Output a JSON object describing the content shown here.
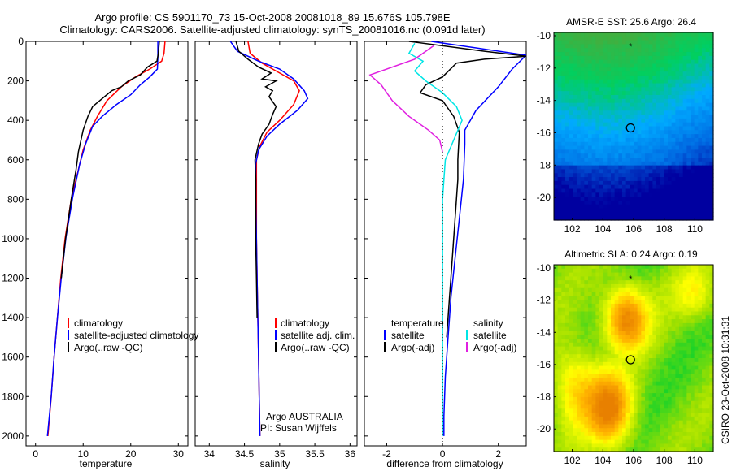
{
  "header": {
    "title_line1": "Argo profile: CS 5901170_73 15-Oct-2008 20081018_89 15.676S 105.798E",
    "title_line2": "Climatology: CARS2006. Satellite-adjusted climatology: synTS_20081016.nc (0.091d later)"
  },
  "credit": "CSIRO 23-Oct-2008 10:31:31",
  "chart_data": [
    {
      "type": "line",
      "xlabel": "temperature",
      "ylabel": "",
      "xlim": [
        -2,
        32
      ],
      "ylim": [
        0,
        2050
      ],
      "y_reversed": true,
      "xticks": [
        0,
        10,
        20,
        30
      ],
      "yticks": [
        0,
        200,
        400,
        600,
        800,
        1000,
        1200,
        1400,
        1600,
        1800,
        2000
      ],
      "legend": [
        "climatology",
        "satellite-adjusted climatology",
        "Argo(..raw -QC)"
      ],
      "series": [
        {
          "name": "climatology",
          "color": "#ff0000",
          "points": [
            [
              27.2,
              0
            ],
            [
              27,
              60
            ],
            [
              26.5,
              100
            ],
            [
              24,
              140
            ],
            [
              21,
              180
            ],
            [
              18,
              230
            ],
            [
              15,
              300
            ],
            [
              13,
              380
            ],
            [
              11.5,
              450
            ],
            [
              10,
              550
            ],
            [
              9,
              650
            ],
            [
              7.5,
              800
            ],
            [
              6.2,
              1000
            ],
            [
              5.3,
              1200
            ],
            [
              4.6,
              1400
            ],
            [
              3.9,
              1600
            ],
            [
              3.3,
              1800
            ],
            [
              2.6,
              2000
            ]
          ]
        },
        {
          "name": "satellite-adjusted climatology",
          "color": "#0000ff",
          "points": [
            [
              25.7,
              0
            ],
            [
              25.7,
              80
            ],
            [
              25.6,
              140
            ],
            [
              24,
              180
            ],
            [
              22,
              220
            ],
            [
              20,
              270
            ],
            [
              17,
              320
            ],
            [
              14,
              380
            ],
            [
              12,
              430
            ],
            [
              10.5,
              520
            ],
            [
              9.3,
              620
            ],
            [
              7.8,
              790
            ],
            [
              6.4,
              990
            ],
            [
              5.4,
              1200
            ],
            [
              4.6,
              1400
            ],
            [
              3.9,
              1600
            ],
            [
              3.3,
              1800
            ],
            [
              2.5,
              2000
            ]
          ]
        },
        {
          "name": "Argo(..raw -QC)",
          "color": "#000000",
          "points": [
            [
              26,
              0
            ],
            [
              25.8,
              60
            ],
            [
              25.5,
              100
            ],
            [
              23.5,
              130
            ],
            [
              22,
              170
            ],
            [
              19.5,
              200
            ],
            [
              18,
              230
            ],
            [
              16,
              250
            ],
            [
              14,
              290
            ],
            [
              12,
              330
            ],
            [
              11,
              380
            ],
            [
              10,
              450
            ],
            [
              9,
              560
            ],
            [
              8.5,
              650
            ],
            [
              7.5,
              800
            ],
            [
              6.3,
              1000
            ],
            [
              5.4,
              1200
            ]
          ]
        }
      ]
    },
    {
      "type": "line",
      "xlabel": "salinity",
      "ylabel": "",
      "xlim": [
        33.8,
        36.1
      ],
      "ylim": [
        0,
        2050
      ],
      "y_reversed": true,
      "xticks": [
        34,
        34.5,
        35,
        35.5,
        36
      ],
      "legend": [
        "climatology",
        "satellite adj. clim.",
        "Argo(..raw -QC)"
      ],
      "annotation": [
        "Argo AUSTRALIA",
        "PI: Susan Wijffels"
      ],
      "series": [
        {
          "name": "climatology",
          "color": "#ff0000",
          "points": [
            [
              34.55,
              0
            ],
            [
              34.58,
              60
            ],
            [
              34.75,
              110
            ],
            [
              35,
              160
            ],
            [
              35.2,
              200
            ],
            [
              35.28,
              250
            ],
            [
              35.2,
              320
            ],
            [
              35,
              400
            ],
            [
              34.82,
              460
            ],
            [
              34.72,
              530
            ],
            [
              34.67,
              600
            ],
            [
              34.67,
              800
            ],
            [
              34.67,
              1000
            ],
            [
              34.68,
              1200
            ],
            [
              34.69,
              1400
            ],
            [
              34.7,
              1600
            ],
            [
              34.71,
              1800
            ],
            [
              34.72,
              2000
            ]
          ]
        },
        {
          "name": "satellite adj. clim.",
          "color": "#0000ff",
          "points": [
            [
              34.3,
              0
            ],
            [
              34.4,
              50
            ],
            [
              34.7,
              100
            ],
            [
              35,
              140
            ],
            [
              35.2,
              190
            ],
            [
              35.35,
              250
            ],
            [
              35.4,
              290
            ],
            [
              35.25,
              350
            ],
            [
              35,
              420
            ],
            [
              34.82,
              480
            ],
            [
              34.7,
              550
            ],
            [
              34.66,
              620
            ],
            [
              34.66,
              800
            ],
            [
              34.67,
              1000
            ],
            [
              34.68,
              1200
            ],
            [
              34.69,
              1400
            ],
            [
              34.7,
              1600
            ],
            [
              34.71,
              1800
            ],
            [
              34.72,
              2000
            ]
          ]
        },
        {
          "name": "Argo(..raw -QC)",
          "color": "#000000",
          "points": [
            [
              34.38,
              0
            ],
            [
              34.42,
              50
            ],
            [
              34.55,
              90
            ],
            [
              34.7,
              130
            ],
            [
              34.88,
              160
            ],
            [
              34.75,
              190
            ],
            [
              34.95,
              200
            ],
            [
              34.8,
              230
            ],
            [
              34.9,
              250
            ],
            [
              34.85,
              280
            ],
            [
              34.95,
              330
            ],
            [
              34.9,
              370
            ],
            [
              34.85,
              420
            ],
            [
              34.75,
              470
            ],
            [
              34.7,
              520
            ],
            [
              34.65,
              600
            ],
            [
              34.66,
              700
            ],
            [
              34.66,
              800
            ],
            [
              34.66,
              1000
            ],
            [
              34.67,
              1200
            ],
            [
              34.68,
              1400
            ]
          ]
        }
      ]
    },
    {
      "type": "line",
      "xlabel": "difference from climatology",
      "ylabel": "",
      "xlim": [
        -2.8,
        3
      ],
      "ylim": [
        0,
        2050
      ],
      "y_reversed": true,
      "xticks": [
        -2,
        0,
        2
      ],
      "legend_headers": [
        "temperature",
        "salinity"
      ],
      "legend": [
        "satellite",
        "Argo(-adj)",
        "satellite",
        "Argo(-adj)"
      ],
      "series": [
        {
          "name": "temperature satellite",
          "color": "#0000ff",
          "points": [
            [
              -0.4,
              0
            ],
            [
              3,
              70
            ],
            [
              2.5,
              140
            ],
            [
              2,
              230
            ],
            [
              1.2,
              350
            ],
            [
              0.8,
              450
            ],
            [
              0.8,
              520
            ],
            [
              0.75,
              700
            ],
            [
              0.6,
              900
            ],
            [
              0.45,
              1100
            ],
            [
              0.3,
              1300
            ],
            [
              0.2,
              1500
            ],
            [
              0.1,
              1700
            ],
            [
              0.05,
              1900
            ],
            [
              0.05,
              2000
            ]
          ]
        },
        {
          "name": "temperature Argo(-adj)",
          "color": "#000000",
          "points": [
            [
              -1.2,
              0
            ],
            [
              1.5,
              50
            ],
            [
              3,
              75
            ],
            [
              1.5,
              90
            ],
            [
              0.5,
              110
            ],
            [
              0,
              180
            ],
            [
              -0.6,
              220
            ],
            [
              -0.8,
              260
            ],
            [
              0,
              300
            ],
            [
              0.4,
              380
            ],
            [
              0.6,
              460
            ],
            [
              0.55,
              600
            ],
            [
              0.55,
              700
            ],
            [
              0.45,
              900
            ],
            [
              0.35,
              1100
            ],
            [
              0.25,
              1300
            ],
            [
              0.15,
              1500
            ]
          ]
        },
        {
          "name": "salinity satellite",
          "color": "#00e5e5",
          "points": [
            [
              -1,
              10
            ],
            [
              -1.2,
              60
            ],
            [
              -0.7,
              100
            ],
            [
              -1,
              150
            ],
            [
              -0.6,
              200
            ],
            [
              0,
              260
            ],
            [
              0.5,
              330
            ],
            [
              0.7,
              400
            ],
            [
              0.4,
              500
            ],
            [
              0.1,
              600
            ],
            [
              0,
              800
            ],
            [
              0,
              1000
            ],
            [
              0,
              1200
            ],
            [
              0,
              1400
            ],
            [
              0,
              1600
            ],
            [
              0,
              1800
            ],
            [
              0,
              2000
            ]
          ]
        },
        {
          "name": "salinity Argo(-adj)",
          "color": "#e020e0",
          "points": [
            [
              -0.3,
              20
            ],
            [
              -1,
              90
            ],
            [
              -2.6,
              170
            ],
            [
              -2.2,
              220
            ],
            [
              -1.8,
              300
            ],
            [
              -1.2,
              380
            ],
            [
              -0.5,
              450
            ],
            [
              -0.1,
              500
            ],
            [
              0,
              560
            ]
          ]
        }
      ]
    },
    {
      "type": "heatmap",
      "title": "AMSR-E SST: 25.6 Argo: 26.4",
      "xticks": [
        102,
        104,
        106,
        108,
        110
      ],
      "yticks": [
        -10,
        -12,
        -14,
        -16,
        -18,
        -20
      ],
      "xlim": [
        100.8,
        111.2
      ],
      "ylim": [
        -21.4,
        -9.8
      ],
      "marker_circle": [
        105.8,
        -15.7
      ],
      "marker_star": [
        105.8,
        -10.6
      ],
      "colors": [
        "#0000a0",
        "#0066e0",
        "#00aaff",
        "#00d060",
        "#40b040"
      ]
    },
    {
      "type": "heatmap",
      "title": "Altimetric SLA: 0.24 Argo: 0.19",
      "xticks": [
        102,
        104,
        106,
        108,
        110
      ],
      "yticks": [
        -10,
        -12,
        -14,
        -16,
        -18,
        -20
      ],
      "xlim": [
        100.8,
        111.2
      ],
      "ylim": [
        -21.4,
        -9.8
      ],
      "marker_circle": [
        105.8,
        -15.7
      ],
      "marker_star": [
        105.8,
        -10.6
      ],
      "colors": [
        "#00d030",
        "#a0e000",
        "#ffff00",
        "#ffb000",
        "#e88000"
      ]
    }
  ]
}
